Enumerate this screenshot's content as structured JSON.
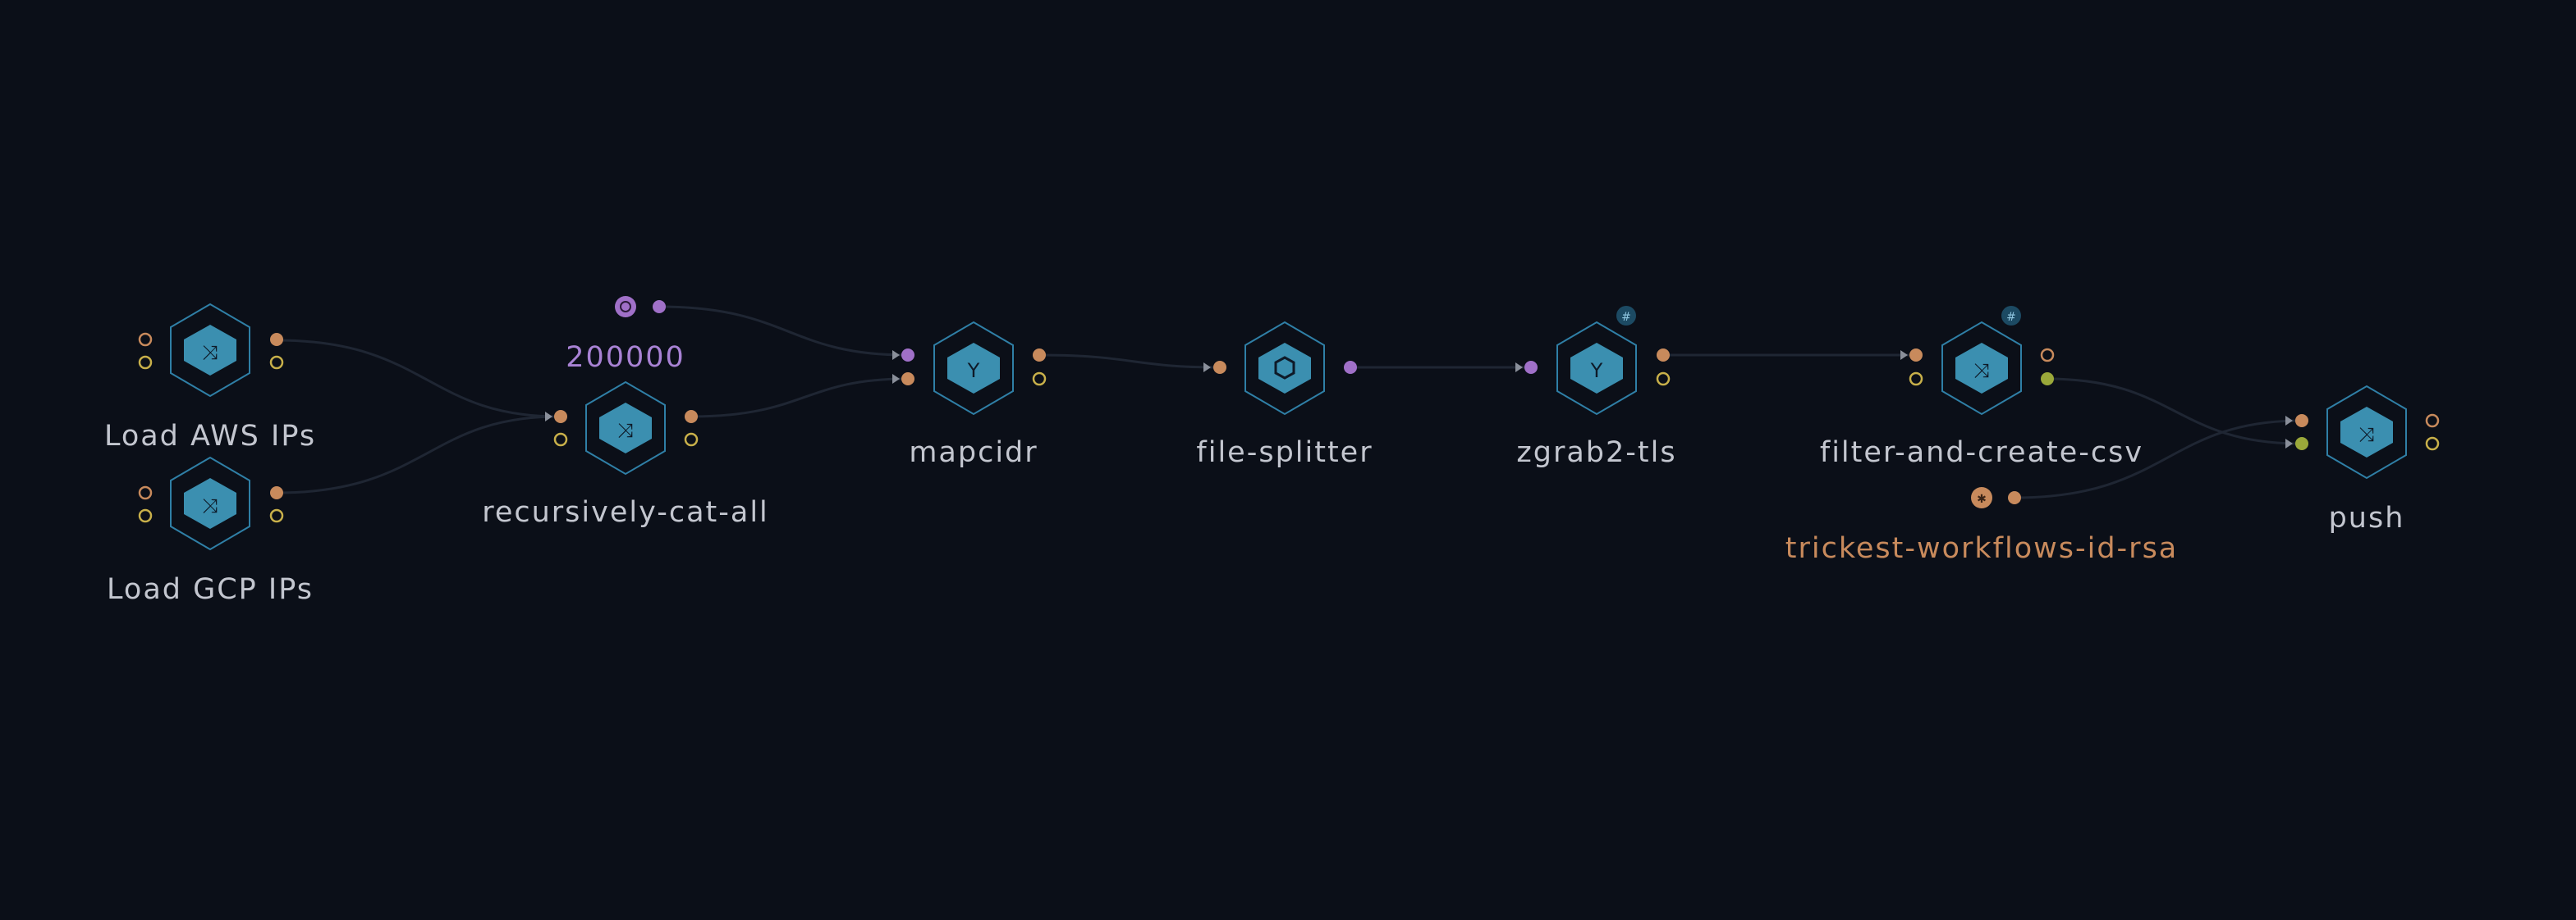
{
  "colors": {
    "background": "#0b0f18",
    "node_border": "#2f7fa6",
    "node_fill": "#3b8fb0",
    "node_icon": "#0e1a28",
    "port_orange": "#c88a5c",
    "port_yellow": "#c8b04a",
    "port_purple": "#a070c8",
    "port_green": "#9aa83a",
    "edge": "#1f2633",
    "label": "#c3c6cf"
  },
  "nodes": [
    {
      "id": "load-aws",
      "label": "Load AWS IPs",
      "icon": "script-icon"
    },
    {
      "id": "load-gcp",
      "label": "Load GCP IPs",
      "icon": "script-icon"
    },
    {
      "id": "recursively-cat-all",
      "label": "recursively-cat-all",
      "icon": "script-icon"
    },
    {
      "id": "mapcidr",
      "label": "mapcidr",
      "icon": "tool-icon"
    },
    {
      "id": "file-splitter",
      "label": "file-splitter",
      "icon": "splitter-icon"
    },
    {
      "id": "zgrab2-tls",
      "label": "zgrab2-tls",
      "icon": "tool-icon"
    },
    {
      "id": "filter-and-create-csv",
      "label": "filter-and-create-csv",
      "icon": "script-icon"
    },
    {
      "id": "push",
      "label": "push",
      "icon": "script-icon"
    }
  ],
  "params": [
    {
      "id": "chunk-size",
      "label": "200000",
      "icon": "number-icon"
    },
    {
      "id": "rsa-file",
      "label": "trickest-workflows-id-rsa",
      "icon": "file-icon"
    }
  ]
}
